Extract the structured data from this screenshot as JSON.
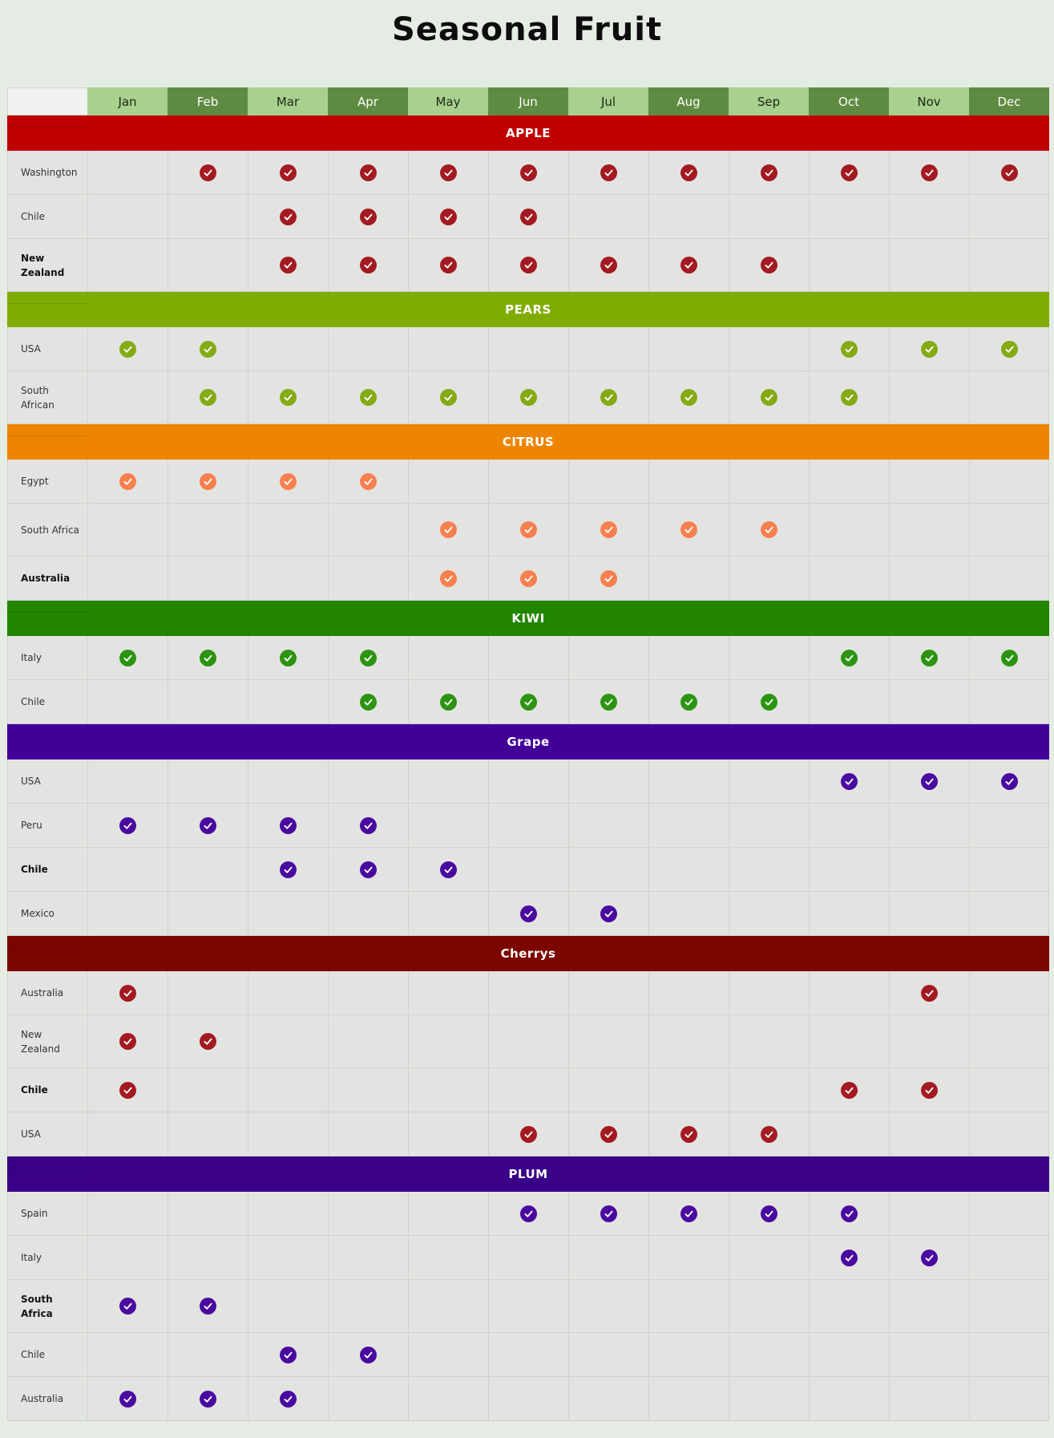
{
  "title": "Seasonal Fruit",
  "months": [
    "Jan",
    "Feb",
    "Mar",
    "Apr",
    "May",
    "Jun",
    "Jul",
    "Aug",
    "Sep",
    "Oct",
    "Nov",
    "Dec"
  ],
  "sections": [
    {
      "name": "APPLE",
      "color": "#c00000",
      "check_color": "#a31a22",
      "rows": [
        {
          "label": "Washington",
          "bold": false,
          "months": [
            2,
            3,
            4,
            5,
            6,
            7,
            8,
            9,
            10,
            11,
            12
          ]
        },
        {
          "label": "Chile",
          "bold": false,
          "months": [
            3,
            4,
            5,
            6
          ]
        },
        {
          "label": "New Zealand",
          "bold": true,
          "months": [
            3,
            4,
            5,
            6,
            7,
            8,
            9
          ]
        }
      ]
    },
    {
      "name": "PEARS",
      "color": "#7fac00",
      "check_color": "#84aa15",
      "rows": [
        {
          "label": "USA",
          "bold": false,
          "months": [
            1,
            2,
            10,
            11,
            12
          ]
        },
        {
          "label": "South African",
          "bold": false,
          "months": [
            2,
            3,
            4,
            5,
            6,
            7,
            8,
            9,
            10
          ]
        }
      ]
    },
    {
      "name": "CITRUS",
      "color": "#ed8500",
      "check_color": "#f7804f",
      "rows": [
        {
          "label": "Egypt",
          "bold": false,
          "months": [
            1,
            2,
            3,
            4
          ]
        },
        {
          "label": "South Africa",
          "bold": false,
          "months": [
            5,
            6,
            7,
            8,
            9
          ]
        },
        {
          "label": "Australia",
          "bold": true,
          "months": [
            5,
            6,
            7
          ]
        }
      ]
    },
    {
      "name": "KIWI",
      "color": "#218500",
      "check_color": "#2c9411",
      "rows": [
        {
          "label": "Italy",
          "bold": false,
          "months": [
            1,
            2,
            3,
            4,
            10,
            11,
            12
          ]
        },
        {
          "label": "Chile",
          "bold": false,
          "months": [
            4,
            5,
            6,
            7,
            8,
            9
          ]
        }
      ]
    },
    {
      "name": "Grape",
      "color": "#420099",
      "check_color": "#4a0aa0",
      "rows": [
        {
          "label": "USA",
          "bold": false,
          "months": [
            10,
            11,
            12
          ]
        },
        {
          "label": "Peru",
          "bold": false,
          "months": [
            1,
            2,
            3,
            4
          ]
        },
        {
          "label": "Chile",
          "bold": true,
          "months": [
            3,
            4,
            5
          ]
        },
        {
          "label": "Mexico",
          "bold": false,
          "months": [
            6,
            7
          ]
        }
      ]
    },
    {
      "name": "Cherrys",
      "color": "#7c0500",
      "check_color": "#a31a22",
      "rows": [
        {
          "label": "Australia",
          "bold": false,
          "months": [
            1,
            11
          ]
        },
        {
          "label": "New Zealand",
          "bold": false,
          "months": [
            1,
            2
          ]
        },
        {
          "label": "Chile",
          "bold": true,
          "months": [
            1,
            10,
            11
          ]
        },
        {
          "label": "USA",
          "bold": false,
          "months": [
            6,
            7,
            8,
            9
          ]
        }
      ]
    },
    {
      "name": "PLUM",
      "color": "#3a0088",
      "check_color": "#4a0aa0",
      "rows": [
        {
          "label": "Spain",
          "bold": false,
          "months": [
            6,
            7,
            8,
            9,
            10
          ]
        },
        {
          "label": "Italy",
          "bold": false,
          "months": [
            10,
            11
          ]
        },
        {
          "label": "South Africa",
          "bold": true,
          "months": [
            1,
            2
          ]
        },
        {
          "label": "Chile",
          "bold": false,
          "months": [
            3,
            4
          ]
        },
        {
          "label": "Australia",
          "bold": false,
          "months": [
            1,
            2,
            3
          ]
        }
      ]
    }
  ]
}
